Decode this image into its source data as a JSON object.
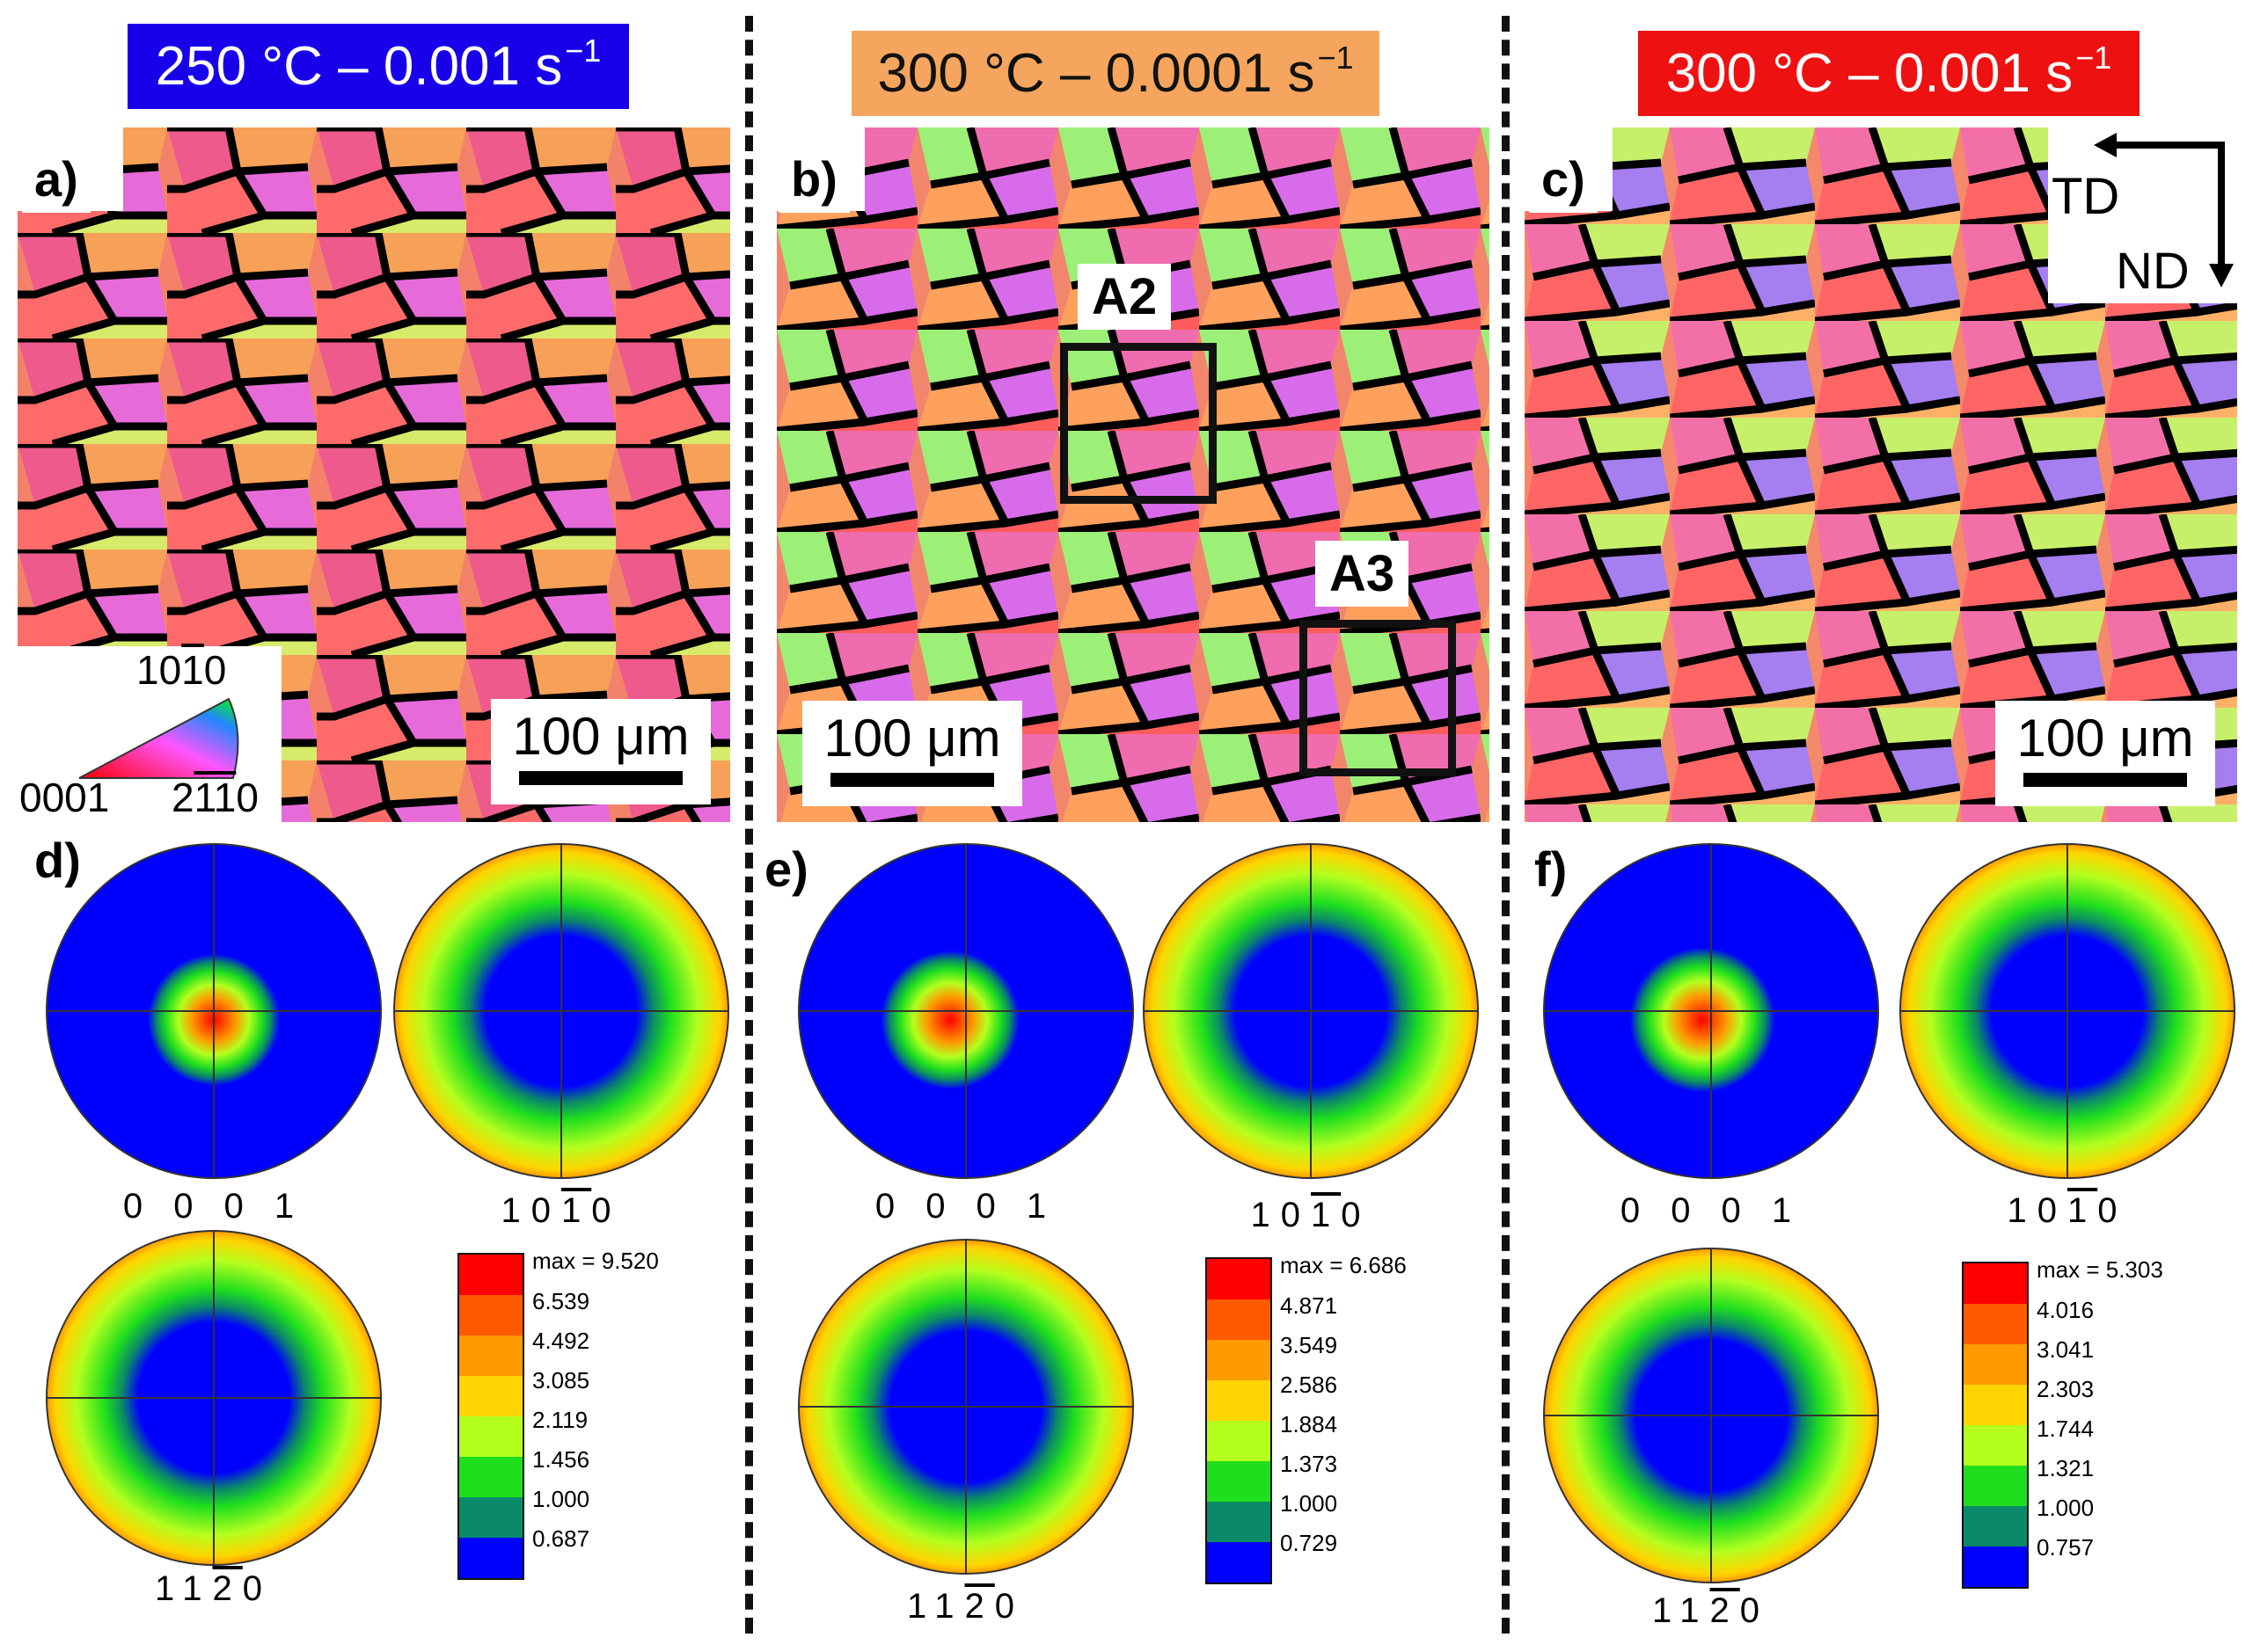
{
  "banners": [
    {
      "text": "250 °C – 0.001 s",
      "sup": "−1",
      "bg": "#1800e8",
      "fg": "#ffffff"
    },
    {
      "text": "300 °C – 0.0001 s",
      "sup": "−1",
      "bg": "#f5a55d",
      "fg": "#111111"
    },
    {
      "text": "300 °C – 0.001 s",
      "sup": "−1",
      "bg": "#ee1111",
      "fg": "#ffffff"
    }
  ],
  "panel_labels": [
    "a)",
    "b)",
    "c)",
    "d)",
    "e)",
    "f)"
  ],
  "scale_bar_label": "100 μm",
  "roi_labels": [
    "A2",
    "A3"
  ],
  "axes": {
    "td": "TD",
    "nd": "ND"
  },
  "ipf_key": {
    "top": "10",
    "top_bar": "1",
    "top_end": "0",
    "left": "0001",
    "right_a": "2",
    "right_bars": "11",
    "right_end": "0"
  },
  "pole_figure_labels": {
    "p0001": "0 0 0 1",
    "p1010": [
      "1",
      "0",
      "1",
      "0"
    ],
    "p1120": [
      "1",
      "1",
      "2",
      "0"
    ]
  },
  "pf_labels_overbar_index": {
    "p1010": 2,
    "p1120": 2
  },
  "legends": [
    {
      "max": "max = 9.520",
      "levels": [
        "6.539",
        "4.492",
        "3.085",
        "2.119",
        "1.456",
        "1.000",
        "0.687"
      ]
    },
    {
      "max": "max = 6.686",
      "levels": [
        "4.871",
        "3.549",
        "2.586",
        "1.884",
        "1.373",
        "1.000",
        "0.729"
      ]
    },
    {
      "max": "max = 5.303",
      "levels": [
        "4.016",
        "3.041",
        "2.303",
        "1.744",
        "1.321",
        "1.000",
        "0.757"
      ]
    }
  ],
  "legend_colors": [
    "#ff0000",
    "#ff5a00",
    "#ff9a00",
    "#ffd400",
    "#b4ff1e",
    "#1ede1e",
    "#0a8a68",
    "#0000ff"
  ]
}
